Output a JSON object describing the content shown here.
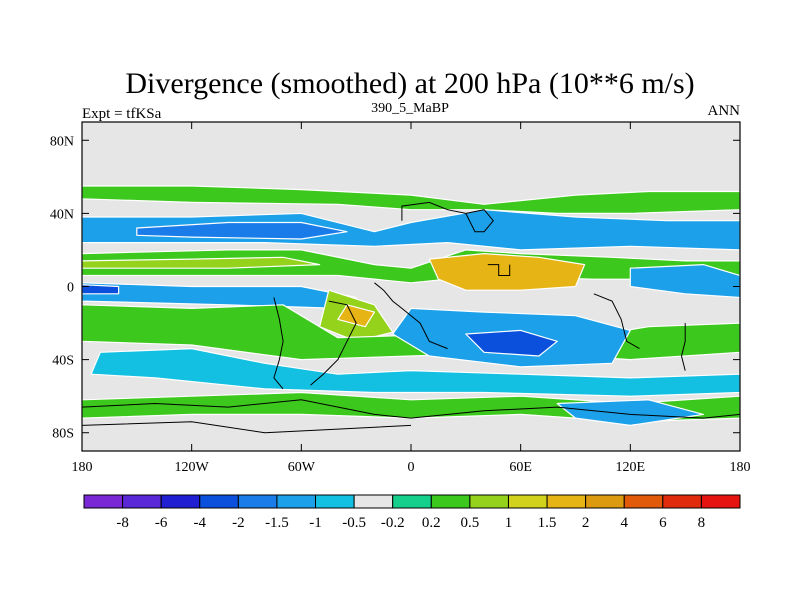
{
  "chart_data": {
    "type": "heatmap",
    "title": "Divergence (smoothed) at 200 hPa (10**6 m/s)",
    "left_label": "Expt = tfKSa",
    "center_label": "390_5_MaBP",
    "right_label": "ANN",
    "x_range": [
      -180,
      180
    ],
    "y_range": [
      -90,
      90
    ],
    "x_ticks": [
      {
        "value": -180,
        "label": "180"
      },
      {
        "value": -120,
        "label": "120W"
      },
      {
        "value": -60,
        "label": "60W"
      },
      {
        "value": 0,
        "label": "0"
      },
      {
        "value": 60,
        "label": "60E"
      },
      {
        "value": 120,
        "label": "120E"
      },
      {
        "value": 180,
        "label": "180"
      }
    ],
    "y_ticks": [
      {
        "value": 80,
        "label": "80N"
      },
      {
        "value": 40,
        "label": "40N"
      },
      {
        "value": 0,
        "label": "0"
      },
      {
        "value": -40,
        "label": "40S"
      },
      {
        "value": -80,
        "label": "80S"
      }
    ],
    "colorbar": {
      "colors": [
        "#7a28d6",
        "#5a28d6",
        "#2020d2",
        "#0a50dc",
        "#1a7ce8",
        "#1ca0ea",
        "#14c0e2",
        "#e6e6e6",
        "#14d08c",
        "#3cc81c",
        "#94d21c",
        "#d2d21c",
        "#e6b414",
        "#dc9a10",
        "#e05a0a",
        "#e02c0c",
        "#e61410"
      ],
      "labels": [
        "-8",
        "-6",
        "-4",
        "-2",
        "-1.5",
        "-1",
        "-0.5",
        "-0.2",
        "0.2",
        "0.5",
        "1",
        "1.5",
        "2",
        "4",
        "6",
        "8"
      ]
    },
    "regions": [
      {
        "name": "nh-midlat-positive-band",
        "level": 0.5,
        "points": [
          [
            -180,
            55
          ],
          [
            -120,
            55
          ],
          [
            -60,
            53
          ],
          [
            0,
            50
          ],
          [
            40,
            45
          ],
          [
            90,
            50
          ],
          [
            130,
            52
          ],
          [
            180,
            52
          ],
          [
            180,
            42
          ],
          [
            120,
            40
          ],
          [
            80,
            40
          ],
          [
            40,
            42
          ],
          [
            0,
            42
          ],
          [
            -40,
            45
          ],
          [
            -120,
            46
          ],
          [
            -180,
            48
          ]
        ]
      },
      {
        "name": "nh-subtropic-negative-band",
        "level": -1,
        "points": [
          [
            -180,
            38
          ],
          [
            -120,
            38
          ],
          [
            -60,
            40
          ],
          [
            -20,
            30
          ],
          [
            0,
            35
          ],
          [
            40,
            42
          ],
          [
            90,
            38
          ],
          [
            140,
            36
          ],
          [
            180,
            36
          ],
          [
            180,
            20
          ],
          [
            120,
            22
          ],
          [
            60,
            20
          ],
          [
            20,
            24
          ],
          [
            -20,
            22
          ],
          [
            -80,
            24
          ],
          [
            -140,
            24
          ],
          [
            -180,
            24
          ]
        ]
      },
      {
        "name": "north-pacific-strong-negative",
        "level": -1.5,
        "points": [
          [
            -150,
            32
          ],
          [
            -100,
            35
          ],
          [
            -60,
            35
          ],
          [
            -35,
            30
          ],
          [
            -60,
            26
          ],
          [
            -120,
            27
          ],
          [
            -150,
            28
          ]
        ]
      },
      {
        "name": "nh-tropic-positive-band",
        "level": 0.5,
        "points": [
          [
            -180,
            18
          ],
          [
            -100,
            20
          ],
          [
            -60,
            20
          ],
          [
            -20,
            12
          ],
          [
            0,
            10
          ],
          [
            30,
            20
          ],
          [
            60,
            18
          ],
          [
            110,
            16
          ],
          [
            150,
            14
          ],
          [
            180,
            14
          ],
          [
            180,
            2
          ],
          [
            140,
            4
          ],
          [
            100,
            4
          ],
          [
            40,
            6
          ],
          [
            0,
            2
          ],
          [
            -40,
            6
          ],
          [
            -100,
            6
          ],
          [
            -180,
            6
          ]
        ]
      },
      {
        "name": "nh-tropic-inner-positive",
        "level": 1,
        "points": [
          [
            -180,
            14
          ],
          [
            -120,
            15
          ],
          [
            -70,
            16
          ],
          [
            -50,
            12
          ],
          [
            -100,
            10
          ],
          [
            -180,
            10
          ]
        ]
      },
      {
        "name": "africa-arabia-strong-positive",
        "level": 2,
        "points": [
          [
            10,
            15
          ],
          [
            40,
            18
          ],
          [
            70,
            16
          ],
          [
            95,
            12
          ],
          [
            90,
            0
          ],
          [
            60,
            -2
          ],
          [
            30,
            -2
          ],
          [
            15,
            4
          ]
        ]
      },
      {
        "name": "equatorial-negative-band",
        "level": -1,
        "points": [
          [
            -180,
            2
          ],
          [
            -120,
            0
          ],
          [
            -60,
            0
          ],
          [
            -30,
            -6
          ],
          [
            -40,
            -12
          ],
          [
            -100,
            -10
          ],
          [
            -180,
            -8
          ]
        ]
      },
      {
        "name": "central-pacific-strong-negative",
        "level": -2,
        "points": [
          [
            -180,
            1
          ],
          [
            -160,
            0
          ],
          [
            -160,
            -4
          ],
          [
            -180,
            -4
          ]
        ]
      },
      {
        "name": "south-america-positive",
        "level": 1,
        "points": [
          [
            -45,
            -2
          ],
          [
            -20,
            -10
          ],
          [
            -10,
            -25
          ],
          [
            -30,
            -30
          ],
          [
            -50,
            -22
          ]
        ]
      },
      {
        "name": "south-america-strong-positive",
        "level": 2,
        "points": [
          [
            -35,
            -10
          ],
          [
            -20,
            -14
          ],
          [
            -25,
            -22
          ],
          [
            -40,
            -18
          ]
        ]
      },
      {
        "name": "sh-subtropic-positive-band",
        "level": 0.5,
        "points": [
          [
            -180,
            -10
          ],
          [
            -120,
            -12
          ],
          [
            -70,
            -10
          ],
          [
            -40,
            -28
          ],
          [
            20,
            -26
          ],
          [
            80,
            -30
          ],
          [
            130,
            -22
          ],
          [
            180,
            -20
          ],
          [
            180,
            -36
          ],
          [
            120,
            -40
          ],
          [
            60,
            -36
          ],
          [
            0,
            -38
          ],
          [
            -60,
            -40
          ],
          [
            -120,
            -32
          ],
          [
            -180,
            -30
          ]
        ]
      },
      {
        "name": "indian-ocean-negative",
        "level": -1,
        "points": [
          [
            0,
            -12
          ],
          [
            40,
            -14
          ],
          [
            90,
            -16
          ],
          [
            120,
            -24
          ],
          [
            110,
            -42
          ],
          [
            60,
            -44
          ],
          [
            10,
            -38
          ],
          [
            -10,
            -26
          ]
        ]
      },
      {
        "name": "indian-ocean-strong-negative",
        "level": -2,
        "points": [
          [
            30,
            -26
          ],
          [
            60,
            -24
          ],
          [
            80,
            -30
          ],
          [
            70,
            -38
          ],
          [
            40,
            -36
          ]
        ]
      },
      {
        "name": "maritime-continent-negative",
        "level": -1,
        "points": [
          [
            120,
            10
          ],
          [
            160,
            12
          ],
          [
            180,
            6
          ],
          [
            180,
            -6
          ],
          [
            150,
            -4
          ],
          [
            120,
            0
          ]
        ]
      },
      {
        "name": "sh-midlat-negative-band",
        "level": -0.5,
        "points": [
          [
            -170,
            -36
          ],
          [
            -120,
            -34
          ],
          [
            -80,
            -42
          ],
          [
            -40,
            -48
          ],
          [
            0,
            -46
          ],
          [
            60,
            -48
          ],
          [
            120,
            -50
          ],
          [
            180,
            -48
          ],
          [
            180,
            -58
          ],
          [
            120,
            -60
          ],
          [
            40,
            -58
          ],
          [
            -20,
            -58
          ],
          [
            -80,
            -56
          ],
          [
            -140,
            -50
          ],
          [
            -175,
            -48
          ]
        ]
      },
      {
        "name": "sh-high-lat-positive-band",
        "level": 0.5,
        "points": [
          [
            -180,
            -62
          ],
          [
            -120,
            -60
          ],
          [
            -60,
            -58
          ],
          [
            0,
            -62
          ],
          [
            60,
            -60
          ],
          [
            120,
            -64
          ],
          [
            180,
            -60
          ],
          [
            180,
            -72
          ],
          [
            120,
            -74
          ],
          [
            60,
            -70
          ],
          [
            0,
            -72
          ],
          [
            -60,
            -70
          ],
          [
            -120,
            -70
          ],
          [
            -180,
            -72
          ]
        ]
      },
      {
        "name": "antarctic-negative",
        "level": -1,
        "points": [
          [
            80,
            -64
          ],
          [
            130,
            -62
          ],
          [
            160,
            -70
          ],
          [
            120,
            -76
          ],
          [
            90,
            -72
          ]
        ]
      }
    ],
    "coastlines": [
      {
        "name": "north-africa-coast",
        "points": [
          [
            -5,
            36
          ],
          [
            -5,
            44
          ],
          [
            10,
            46
          ],
          [
            20,
            42
          ],
          [
            30,
            40
          ],
          [
            40,
            42
          ],
          [
            45,
            36
          ],
          [
            40,
            30
          ],
          [
            35,
            30
          ],
          [
            30,
            40
          ]
        ]
      },
      {
        "name": "west-africa-coast",
        "points": [
          [
            -20,
            2
          ],
          [
            -15,
            -2
          ],
          [
            -10,
            -8
          ],
          [
            -5,
            -12
          ],
          [
            5,
            -20
          ],
          [
            10,
            -30
          ],
          [
            20,
            -34
          ]
        ]
      },
      {
        "name": "arabia-box",
        "points": [
          [
            42,
            12
          ],
          [
            48,
            12
          ],
          [
            48,
            6
          ],
          [
            54,
            6
          ],
          [
            54,
            12
          ]
        ]
      },
      {
        "name": "south-america-east-coast",
        "points": [
          [
            -45,
            -8
          ],
          [
            -35,
            -10
          ],
          [
            -30,
            -20
          ],
          [
            -35,
            -30
          ],
          [
            -40,
            -40
          ],
          [
            -48,
            -48
          ],
          [
            -55,
            -54
          ]
        ]
      },
      {
        "name": "south-america-west-coast",
        "points": [
          [
            -75,
            -6
          ],
          [
            -72,
            -18
          ],
          [
            -70,
            -30
          ],
          [
            -72,
            -40
          ],
          [
            -75,
            -50
          ],
          [
            -70,
            -56
          ]
        ]
      },
      {
        "name": "australia-west-coast",
        "points": [
          [
            100,
            -4
          ],
          [
            110,
            -8
          ],
          [
            115,
            -18
          ],
          [
            118,
            -30
          ],
          [
            125,
            -34
          ]
        ]
      },
      {
        "name": "australia-east-coast",
        "points": [
          [
            150,
            -20
          ],
          [
            150,
            -30
          ],
          [
            148,
            -38
          ],
          [
            150,
            -46
          ]
        ]
      },
      {
        "name": "antarctica-coast",
        "points": [
          [
            -180,
            -66
          ],
          [
            -140,
            -64
          ],
          [
            -100,
            -66
          ],
          [
            -60,
            -62
          ],
          [
            -20,
            -70
          ],
          [
            0,
            -72
          ],
          [
            40,
            -68
          ],
          [
            80,
            -66
          ],
          [
            120,
            -70
          ],
          [
            160,
            -72
          ],
          [
            180,
            -70
          ]
        ]
      },
      {
        "name": "antarctica-inner-coast",
        "points": [
          [
            -180,
            -76
          ],
          [
            -120,
            -74
          ],
          [
            -80,
            -80
          ],
          [
            -40,
            -78
          ],
          [
            0,
            -76
          ]
        ]
      }
    ]
  }
}
